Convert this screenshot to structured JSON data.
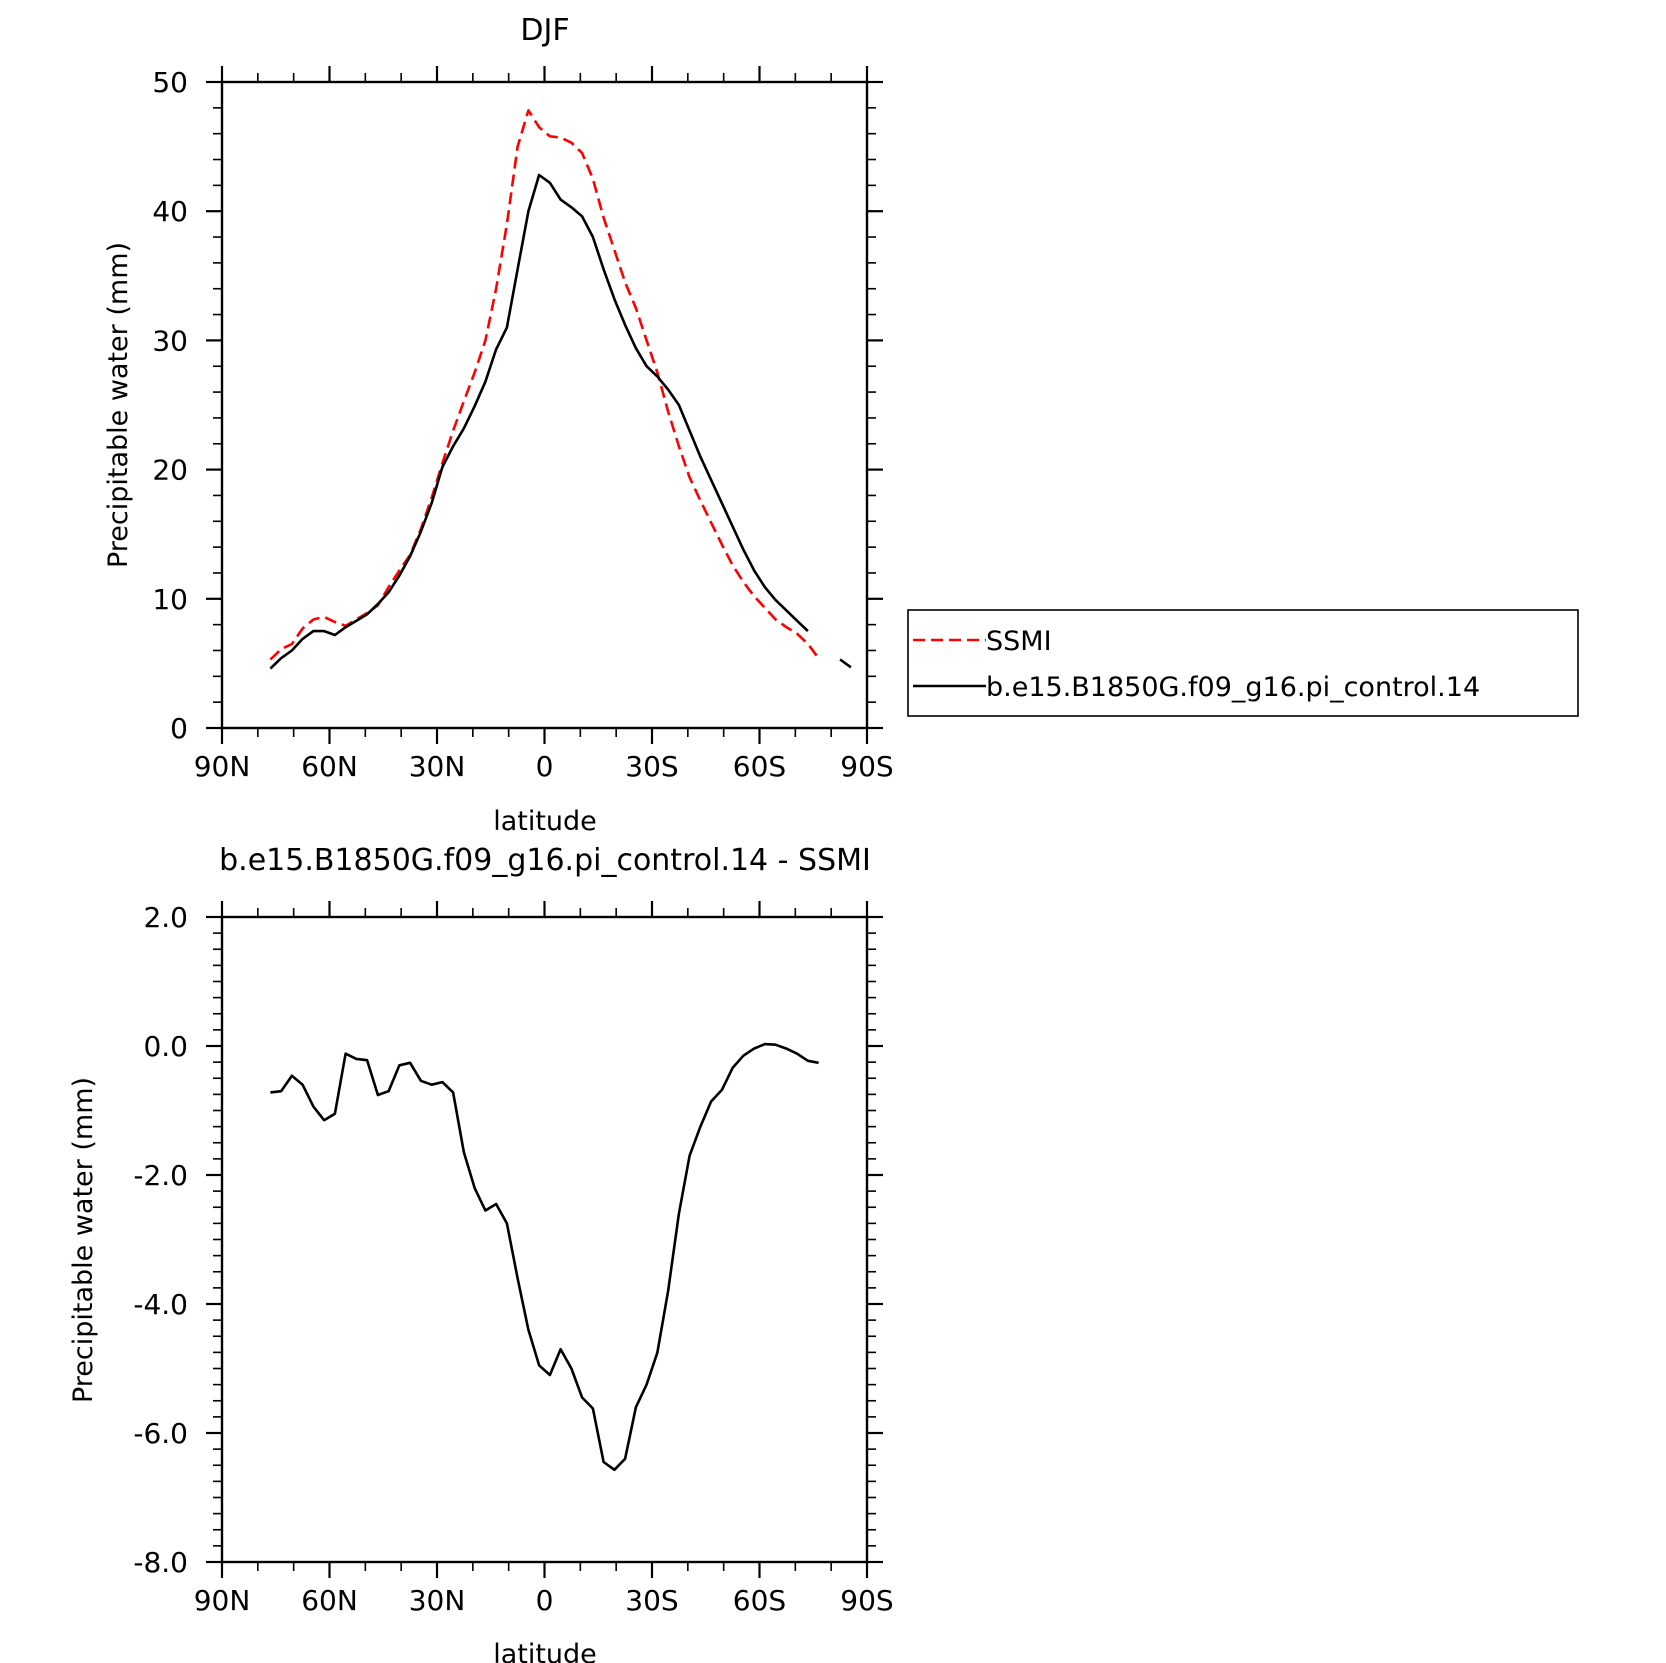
{
  "chart_data": [
    {
      "type": "line",
      "title": "DJF",
      "xlabel": "latitude",
      "ylabel": "Precipitable water (mm)",
      "xlim": [
        -90,
        90
      ],
      "ylim": [
        0,
        50
      ],
      "x_ticks": [
        {
          "value": -90,
          "label": "90N"
        },
        {
          "value": -60,
          "label": "60N"
        },
        {
          "value": -30,
          "label": "30N"
        },
        {
          "value": 0,
          "label": "0"
        },
        {
          "value": 30,
          "label": "30S"
        },
        {
          "value": 60,
          "label": "60S"
        },
        {
          "value": 90,
          "label": "90S"
        }
      ],
      "y_ticks": [
        {
          "value": 0,
          "label": "0"
        },
        {
          "value": 10,
          "label": "10"
        },
        {
          "value": 20,
          "label": "20"
        },
        {
          "value": 30,
          "label": "30"
        },
        {
          "value": 40,
          "label": "40"
        },
        {
          "value": 50,
          "label": "50"
        }
      ],
      "legend_position": "right",
      "series": [
        {
          "name": "SSMI",
          "color": "#ff0000",
          "dash": "dashed",
          "segments": [
            [
              [
                -76.5,
                5.3
              ],
              [
                -73.5,
                6.1
              ],
              [
                -70.5,
                6.5
              ],
              [
                -67.5,
                7.7
              ],
              [
                -64.5,
                8.4
              ],
              [
                -61.5,
                8.6
              ],
              [
                -58.5,
                8.2
              ],
              [
                -55.5,
                7.9
              ],
              [
                -52.5,
                8.4
              ],
              [
                -49.5,
                8.9
              ],
              [
                -46.5,
                9.5
              ],
              [
                -43.5,
                10.9
              ],
              [
                -40.5,
                12.2
              ],
              [
                -37.5,
                13.4
              ],
              [
                -34.5,
                15.4
              ],
              [
                -31.5,
                17.8
              ],
              [
                -28.5,
                20.5
              ],
              [
                -25.5,
                23.0
              ],
              [
                -22.5,
                25.3
              ],
              [
                -19.5,
                27.5
              ],
              [
                -16.5,
                30.0
              ],
              [
                -13.5,
                34.0
              ],
              [
                -10.5,
                39.0
              ],
              [
                -7.5,
                45.0
              ],
              [
                -4.5,
                47.8
              ],
              [
                -1.5,
                46.5
              ],
              [
                1.5,
                45.8
              ],
              [
                4.5,
                45.7
              ],
              [
                7.5,
                45.3
              ],
              [
                10.5,
                44.5
              ],
              [
                13.5,
                42.5
              ],
              [
                16.5,
                39.5
              ],
              [
                19.5,
                37.0
              ],
              [
                22.5,
                34.5
              ],
              [
                25.5,
                32.5
              ],
              [
                28.5,
                30.0
              ],
              [
                31.5,
                27.5
              ],
              [
                34.5,
                24.5
              ],
              [
                37.5,
                21.8
              ],
              [
                40.5,
                19.4
              ],
              [
                43.5,
                17.6
              ],
              [
                46.5,
                15.9
              ],
              [
                49.5,
                14.2
              ],
              [
                52.5,
                12.6
              ],
              [
                55.5,
                11.3
              ],
              [
                58.5,
                10.2
              ],
              [
                61.5,
                9.3
              ],
              [
                64.5,
                8.4
              ],
              [
                67.5,
                7.8
              ],
              [
                70.5,
                7.3
              ],
              [
                73.5,
                6.5
              ],
              [
                76.5,
                5.4
              ]
            ]
          ]
        },
        {
          "name": "b.e15.B1850G.f09_g16.pi_control.14",
          "color": "#000000",
          "dash": "solid",
          "segments": [
            [
              [
                -76.5,
                4.6
              ],
              [
                -73.5,
                5.4
              ],
              [
                -70.5,
                6.0
              ],
              [
                -67.5,
                6.9
              ],
              [
                -64.5,
                7.5
              ],
              [
                -61.5,
                7.5
              ],
              [
                -58.5,
                7.2
              ],
              [
                -55.5,
                7.8
              ],
              [
                -52.5,
                8.3
              ],
              [
                -49.5,
                8.8
              ],
              [
                -46.5,
                9.6
              ],
              [
                -43.5,
                10.5
              ],
              [
                -40.5,
                11.8
              ],
              [
                -37.5,
                13.3
              ],
              [
                -34.5,
                15.2
              ],
              [
                -31.5,
                17.4
              ],
              [
                -28.5,
                20.2
              ],
              [
                -25.5,
                21.8
              ],
              [
                -22.5,
                23.2
              ],
              [
                -19.5,
                24.9
              ],
              [
                -16.5,
                26.8
              ],
              [
                -13.5,
                29.3
              ],
              [
                -10.5,
                31.0
              ],
              [
                -7.5,
                35.5
              ],
              [
                -4.5,
                40.0
              ],
              [
                -1.5,
                42.8
              ],
              [
                1.5,
                42.2
              ],
              [
                4.5,
                40.9
              ],
              [
                7.5,
                40.3
              ],
              [
                10.5,
                39.6
              ],
              [
                13.5,
                38.0
              ],
              [
                16.5,
                35.5
              ],
              [
                19.5,
                33.2
              ],
              [
                22.5,
                31.2
              ],
              [
                25.5,
                29.4
              ],
              [
                28.5,
                28.0
              ],
              [
                31.5,
                27.2
              ],
              [
                34.5,
                26.2
              ],
              [
                37.5,
                25.0
              ],
              [
                40.5,
                23.0
              ],
              [
                43.5,
                21.0
              ],
              [
                46.5,
                19.2
              ],
              [
                49.5,
                17.4
              ],
              [
                52.5,
                15.6
              ],
              [
                55.5,
                13.8
              ],
              [
                58.5,
                12.2
              ],
              [
                61.5,
                10.9
              ],
              [
                64.5,
                9.9
              ],
              [
                67.5,
                9.1
              ],
              [
                70.5,
                8.3
              ],
              [
                73.5,
                7.5
              ]
            ],
            [
              [
                82.5,
                5.3
              ],
              [
                85.5,
                4.7
              ]
            ]
          ]
        }
      ]
    },
    {
      "type": "line",
      "title": "b.e15.B1850G.f09_g16.pi_control.14 - SSMI",
      "xlabel": "latitude",
      "ylabel": "Precipitable water (mm)",
      "xlim": [
        -90,
        90
      ],
      "ylim": [
        -8,
        2
      ],
      "x_ticks": [
        {
          "value": -90,
          "label": "90N"
        },
        {
          "value": -60,
          "label": "60N"
        },
        {
          "value": -30,
          "label": "30N"
        },
        {
          "value": 0,
          "label": "0"
        },
        {
          "value": 30,
          "label": "30S"
        },
        {
          "value": 60,
          "label": "60S"
        },
        {
          "value": 90,
          "label": "90S"
        }
      ],
      "y_ticks": [
        {
          "value": -8,
          "label": "-8.0"
        },
        {
          "value": -6,
          "label": "-6.0"
        },
        {
          "value": -4,
          "label": "-4.0"
        },
        {
          "value": -2,
          "label": "-2.0"
        },
        {
          "value": 0,
          "label": "0.0"
        },
        {
          "value": 2,
          "label": "2.0"
        }
      ],
      "series": [
        {
          "color": "#000000",
          "dash": "solid",
          "segments": [
            [
              [
                -76.5,
                -0.72
              ],
              [
                -73.5,
                -0.7
              ],
              [
                -70.5,
                -0.46
              ],
              [
                -67.5,
                -0.6
              ],
              [
                -64.5,
                -0.94
              ],
              [
                -61.5,
                -1.15
              ],
              [
                -58.5,
                -1.05
              ],
              [
                -55.5,
                -0.12
              ],
              [
                -52.5,
                -0.2
              ],
              [
                -49.5,
                -0.22
              ],
              [
                -46.5,
                -0.76
              ],
              [
                -43.5,
                -0.7
              ],
              [
                -40.5,
                -0.3
              ],
              [
                -37.5,
                -0.26
              ],
              [
                -34.5,
                -0.54
              ],
              [
                -31.5,
                -0.6
              ],
              [
                -28.5,
                -0.56
              ],
              [
                -25.5,
                -0.72
              ],
              [
                -22.5,
                -1.65
              ],
              [
                -19.5,
                -2.2
              ],
              [
                -16.5,
                -2.55
              ],
              [
                -13.5,
                -2.45
              ],
              [
                -10.5,
                -2.75
              ],
              [
                -7.5,
                -3.6
              ],
              [
                -4.5,
                -4.4
              ],
              [
                -1.5,
                -4.95
              ],
              [
                1.5,
                -5.1
              ],
              [
                4.5,
                -4.7
              ],
              [
                7.5,
                -5.0
              ],
              [
                10.5,
                -5.45
              ],
              [
                13.5,
                -5.62
              ],
              [
                16.5,
                -6.45
              ],
              [
                19.5,
                -6.57
              ],
              [
                22.5,
                -6.4
              ],
              [
                25.5,
                -5.6
              ],
              [
                28.5,
                -5.25
              ],
              [
                31.5,
                -4.75
              ],
              [
                34.5,
                -3.8
              ],
              [
                37.5,
                -2.6
              ],
              [
                40.5,
                -1.7
              ],
              [
                43.5,
                -1.25
              ],
              [
                46.5,
                -0.86
              ],
              [
                49.5,
                -0.68
              ],
              [
                52.5,
                -0.34
              ],
              [
                55.5,
                -0.15
              ],
              [
                58.5,
                -0.04
              ],
              [
                61.5,
                0.03
              ],
              [
                64.5,
                0.02
              ],
              [
                67.5,
                -0.04
              ],
              [
                70.5,
                -0.12
              ],
              [
                73.5,
                -0.23
              ],
              [
                76.5,
                -0.26
              ]
            ]
          ]
        }
      ]
    }
  ]
}
